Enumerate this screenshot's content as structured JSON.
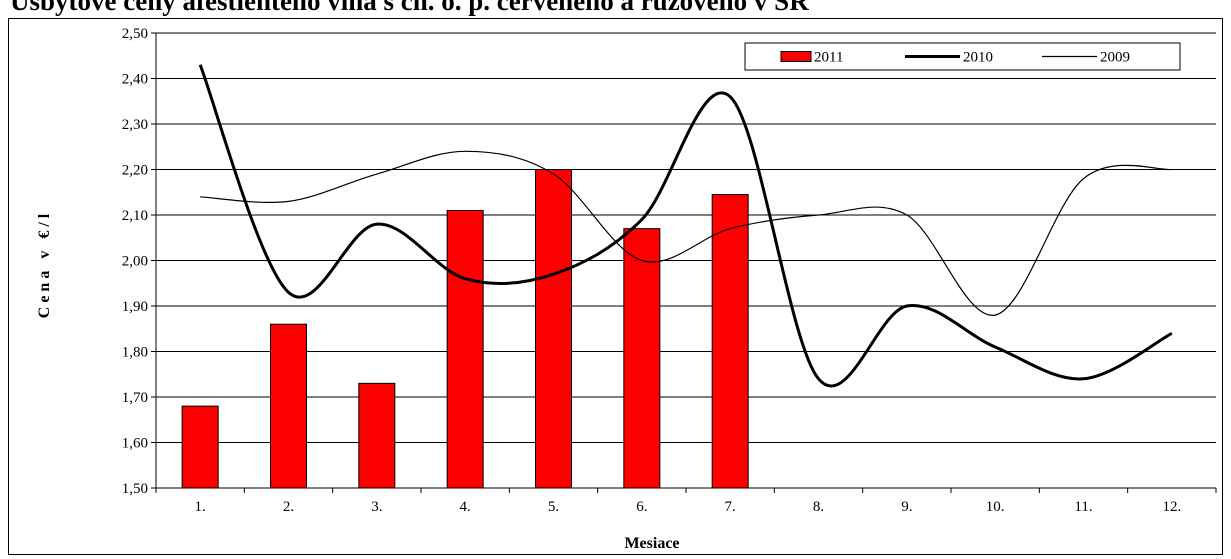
{
  "title": "Úsbytové ceny afeštienteho vína s ch. o. p. červeného a ružového v SR",
  "chart_data": {
    "type": "bar",
    "categories": [
      "1.",
      "2.",
      "3.",
      "4.",
      "5.",
      "6.",
      "7.",
      "8.",
      "9.",
      "10.",
      "11.",
      "12."
    ],
    "ylim": [
      1.5,
      2.5
    ],
    "yticks": [
      "1,50",
      "1,60",
      "1,70",
      "1,80",
      "1,90",
      "2,00",
      "2,10",
      "2,20",
      "2,30",
      "2,40",
      "2,50"
    ],
    "xlabel": "Mesiace",
    "ylabel": "Cena v €/l",
    "grid": true,
    "legend_position": "top-right",
    "series": [
      {
        "name": "2011",
        "kind": "bar",
        "color": "#ff0000",
        "values": [
          1.68,
          1.86,
          1.73,
          2.11,
          2.2,
          2.07,
          2.145,
          null,
          null,
          null,
          null,
          null
        ]
      },
      {
        "name": "2010",
        "kind": "line",
        "color": "#000000",
        "values": [
          2.43,
          1.93,
          2.08,
          1.96,
          1.97,
          2.09,
          2.36,
          1.74,
          1.9,
          1.81,
          1.74,
          1.84
        ]
      },
      {
        "name": "2009",
        "kind": "line",
        "color": "#000000",
        "values": [
          2.14,
          2.13,
          2.19,
          2.24,
          2.19,
          2.0,
          2.07,
          2.1,
          2.1,
          1.88,
          2.18,
          2.2
        ]
      }
    ]
  }
}
